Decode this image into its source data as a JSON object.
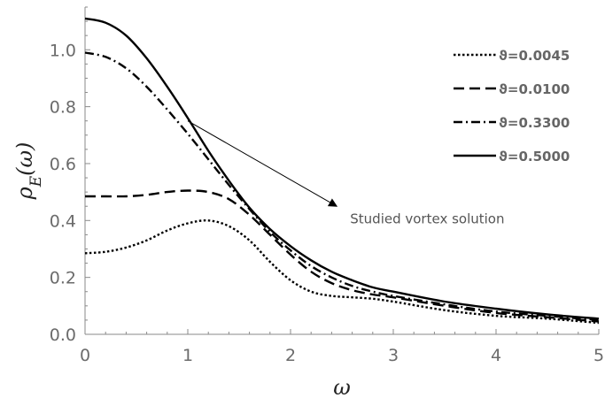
{
  "chart_data": {
    "type": "line",
    "title": "",
    "xlabel": "ω",
    "ylabel": "ρ_E(ω)",
    "xlim": [
      0,
      5
    ],
    "ylim": [
      0,
      1.15
    ],
    "xticks": [
      0,
      1,
      2,
      3,
      4,
      5
    ],
    "yticks": [
      0.0,
      0.2,
      0.4,
      0.6,
      0.8,
      1.0
    ],
    "xtick_labels": [
      "0",
      "1",
      "2",
      "3",
      "4",
      "5"
    ],
    "ytick_labels": [
      "0.0",
      "0.2",
      "0.4",
      "0.6",
      "0.8",
      "1.0"
    ],
    "grid": false,
    "legend_position": "right",
    "series": [
      {
        "name": "ϑ=0.0045",
        "style": "dotted",
        "color": "#000000",
        "x": [
          0,
          0.2,
          0.4,
          0.6,
          0.8,
          1.0,
          1.2,
          1.4,
          1.6,
          1.8,
          2.0,
          2.2,
          2.4,
          2.6,
          2.8,
          3.0,
          3.5,
          4.0,
          4.5,
          5.0
        ],
        "y": [
          0.285,
          0.29,
          0.305,
          0.33,
          0.365,
          0.39,
          0.4,
          0.38,
          0.33,
          0.255,
          0.19,
          0.15,
          0.135,
          0.13,
          0.125,
          0.115,
          0.085,
          0.065,
          0.055,
          0.04
        ]
      },
      {
        "name": "ϑ=0.0100",
        "style": "dashed",
        "color": "#000000",
        "x": [
          0,
          0.2,
          0.4,
          0.6,
          0.8,
          1.0,
          1.2,
          1.4,
          1.6,
          1.8,
          2.0,
          2.2,
          2.4,
          2.6,
          2.8,
          3.0,
          3.5,
          4.0,
          4.5,
          5.0
        ],
        "y": [
          0.485,
          0.485,
          0.485,
          0.49,
          0.5,
          0.505,
          0.5,
          0.475,
          0.42,
          0.35,
          0.28,
          0.22,
          0.18,
          0.155,
          0.14,
          0.13,
          0.1,
          0.075,
          0.06,
          0.045
        ]
      },
      {
        "name": "ϑ=0.3300",
        "style": "dashdot",
        "color": "#000000",
        "x": [
          0,
          0.2,
          0.4,
          0.6,
          0.8,
          1.0,
          1.2,
          1.4,
          1.6,
          1.8,
          2.0,
          2.2,
          2.4,
          2.6,
          2.8,
          3.0,
          3.5,
          4.0,
          4.5,
          5.0
        ],
        "y": [
          0.99,
          0.975,
          0.935,
          0.87,
          0.79,
          0.705,
          0.615,
          0.525,
          0.44,
          0.36,
          0.295,
          0.24,
          0.2,
          0.17,
          0.15,
          0.135,
          0.105,
          0.08,
          0.065,
          0.05
        ]
      },
      {
        "name": "ϑ=0.5000",
        "style": "solid",
        "color": "#000000",
        "x": [
          0,
          0.2,
          0.4,
          0.6,
          0.8,
          1.0,
          1.2,
          1.4,
          1.6,
          1.8,
          2.0,
          2.2,
          2.4,
          2.6,
          2.8,
          3.0,
          3.5,
          4.0,
          4.5,
          5.0
        ],
        "y": [
          1.11,
          1.095,
          1.05,
          0.97,
          0.87,
          0.76,
          0.645,
          0.54,
          0.445,
          0.37,
          0.31,
          0.26,
          0.22,
          0.19,
          0.165,
          0.15,
          0.115,
          0.09,
          0.07,
          0.055
        ]
      }
    ],
    "annotation": {
      "text": "Studied vortex solution",
      "arrow": {
        "from": [
          1.0,
          0.75
        ],
        "to": [
          2.45,
          0.45
        ]
      }
    }
  }
}
